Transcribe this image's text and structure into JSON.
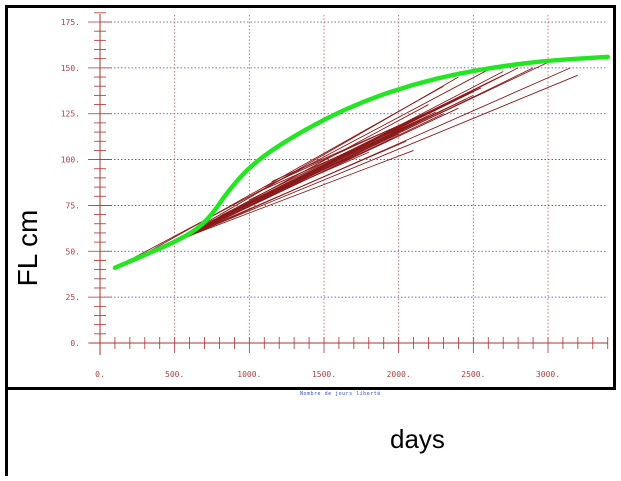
{
  "window": {
    "ylabel": "FL cm",
    "xlabel": "days",
    "inner_xlabel": "Nombre de jours liberté"
  },
  "colors": {
    "axis": "#b03030",
    "vgrid": "#c05050",
    "hgrid": "#4040d0",
    "tracks": "#8b1a1a",
    "curve": "#22e622"
  },
  "chart_data": {
    "type": "line",
    "title": "",
    "xlabel": "days",
    "ylabel": "FL cm",
    "xlim": [
      0,
      3400
    ],
    "ylim": [
      0,
      180
    ],
    "x_ticks": [
      0,
      500,
      1000,
      1500,
      2000,
      2500,
      3000
    ],
    "x_tick_labels": [
      "0.",
      "500.",
      "1000.",
      "1500.",
      "2000.",
      "2500.",
      "3000."
    ],
    "y_ticks": [
      0,
      25,
      50,
      75,
      100,
      125,
      150,
      175
    ],
    "y_tick_labels": [
      "0.",
      "25.",
      "50.",
      "75.",
      "100.",
      "125.",
      "150.",
      "175."
    ],
    "grid": true,
    "series": [
      {
        "type": "curve",
        "x": [
          100,
          300,
          500,
          650,
          750,
          850,
          1000,
          1200,
          1500,
          1800,
          2100,
          2400,
          2700,
          3000,
          3400
        ],
        "y": [
          41,
          48,
          55,
          62,
          70,
          82,
          96,
          108,
          122,
          133,
          141,
          147,
          151,
          154,
          156
        ]
      },
      {
        "type": "tracks",
        "segments": [
          [
            [
              100,
              41
            ],
            [
              2600,
              149
            ]
          ],
          [
            [
              200,
              44
            ],
            [
              2300,
              140
            ]
          ],
          [
            [
              300,
              47
            ],
            [
              2200,
              130
            ]
          ],
          [
            [
              350,
              49
            ],
            [
              2900,
              150
            ]
          ],
          [
            [
              400,
              51
            ],
            [
              2400,
              145
            ]
          ],
          [
            [
              420,
              52
            ],
            [
              2000,
              118
            ]
          ],
          [
            [
              450,
              53
            ],
            [
              3150,
              150
            ]
          ],
          [
            [
              480,
              54
            ],
            [
              2300,
              125
            ]
          ],
          [
            [
              500,
              55
            ],
            [
              2700,
              148
            ]
          ],
          [
            [
              520,
              56
            ],
            [
              2100,
              105
            ]
          ],
          [
            [
              550,
              57
            ],
            [
              2500,
              135
            ]
          ],
          [
            [
              580,
              58
            ],
            [
              3200,
              146
            ]
          ],
          [
            [
              600,
              59
            ],
            [
              2050,
              110
            ]
          ],
          [
            [
              620,
              60
            ],
            [
              2400,
              128
            ]
          ],
          [
            [
              640,
              61
            ],
            [
              1900,
              112
            ]
          ],
          [
            [
              660,
              62
            ],
            [
              2600,
              142
            ]
          ],
          [
            [
              680,
              63
            ],
            [
              2200,
              124
            ]
          ],
          [
            [
              700,
              64
            ],
            [
              2800,
              150
            ]
          ],
          [
            [
              720,
              65
            ],
            [
              2000,
              114
            ]
          ],
          [
            [
              740,
              66
            ],
            [
              3000,
              153
            ]
          ],
          [
            [
              760,
              67
            ],
            [
              2300,
              127
            ]
          ],
          [
            [
              780,
              68
            ],
            [
              1800,
              104
            ]
          ],
          [
            [
              800,
              69
            ],
            [
              2500,
              137
            ]
          ],
          [
            [
              820,
              70
            ],
            [
              2100,
              120
            ]
          ],
          [
            [
              850,
              71
            ],
            [
              2650,
              144
            ]
          ],
          [
            [
              880,
              72
            ],
            [
              1950,
              111
            ]
          ],
          [
            [
              900,
              73
            ],
            [
              2450,
              133
            ]
          ],
          [
            [
              950,
              75
            ],
            [
              2250,
              126
            ]
          ],
          [
            [
              1000,
              78
            ],
            [
              2700,
              146
            ]
          ],
          [
            [
              1050,
              82
            ],
            [
              2150,
              122
            ]
          ],
          [
            [
              1100,
              85
            ],
            [
              2550,
              139
            ]
          ],
          [
            [
              1150,
              88
            ],
            [
              2350,
              131
            ]
          ]
        ]
      }
    ]
  }
}
